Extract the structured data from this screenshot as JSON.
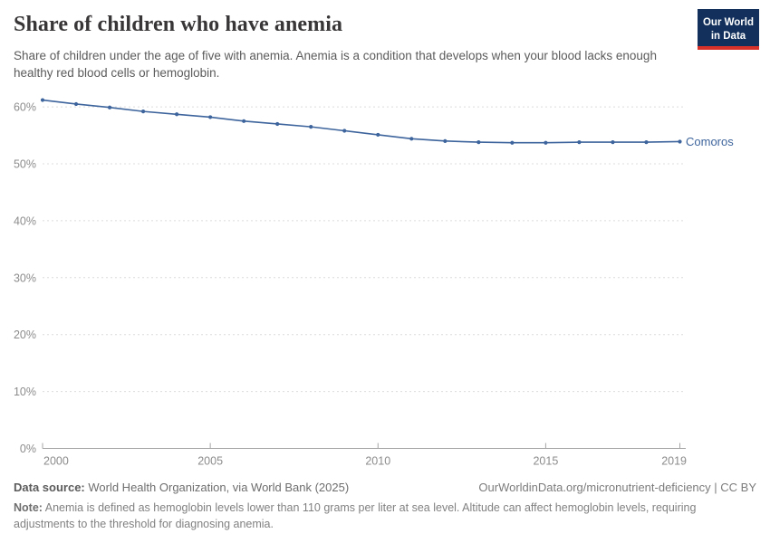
{
  "header": {
    "title": "Share of children who have anemia",
    "subtitle": "Share of children under the age of five with anemia. Anemia is a condition that develops when your blood lacks enough healthy red blood cells or hemoglobin.",
    "logo": {
      "line1": "Our World",
      "line2": "in Data",
      "bg_color": "#12305b",
      "stripe_color": "#d7312a"
    }
  },
  "chart_data": {
    "type": "line",
    "title": "Share of children who have anemia",
    "x": [
      2000,
      2001,
      2002,
      2003,
      2004,
      2005,
      2006,
      2007,
      2008,
      2009,
      2010,
      2011,
      2012,
      2013,
      2014,
      2015,
      2016,
      2017,
      2018,
      2019
    ],
    "series": [
      {
        "name": "Comoros",
        "color": "#3d649c",
        "values": [
          61.2,
          60.5,
          59.9,
          59.2,
          58.7,
          58.2,
          57.5,
          57.0,
          56.5,
          55.8,
          55.1,
          54.4,
          54.0,
          53.8,
          53.7,
          53.7,
          53.8,
          53.8,
          53.8,
          53.9
        ]
      }
    ],
    "xlabel": "",
    "ylabel": "",
    "ylim": [
      0,
      63
    ],
    "xlim": [
      2000,
      2019
    ],
    "yticks": [
      0,
      10,
      20,
      30,
      40,
      50,
      60
    ],
    "ytick_suffix": "%",
    "xticks": [
      2000,
      2005,
      2010,
      2015,
      2019
    ],
    "grid": "horizontal-dashed",
    "legend_position": "end-of-line-label",
    "gridline_color": "#dcdcdc",
    "axis_color": "#a5a5a5",
    "tick_label_color": "#8c8c8c"
  },
  "footer": {
    "datasource_label": "Data source:",
    "datasource_text": " World Health Organization, via World Bank (2025)",
    "link_text": "OurWorldinData.org/micronutrient-deficiency | CC BY",
    "note_label": "Note:",
    "note_text": " Anemia is defined as hemoglobin levels lower than 110 grams per liter at sea level. Altitude can affect hemoglobin levels, requiring adjustments to the threshold for diagnosing anemia."
  }
}
